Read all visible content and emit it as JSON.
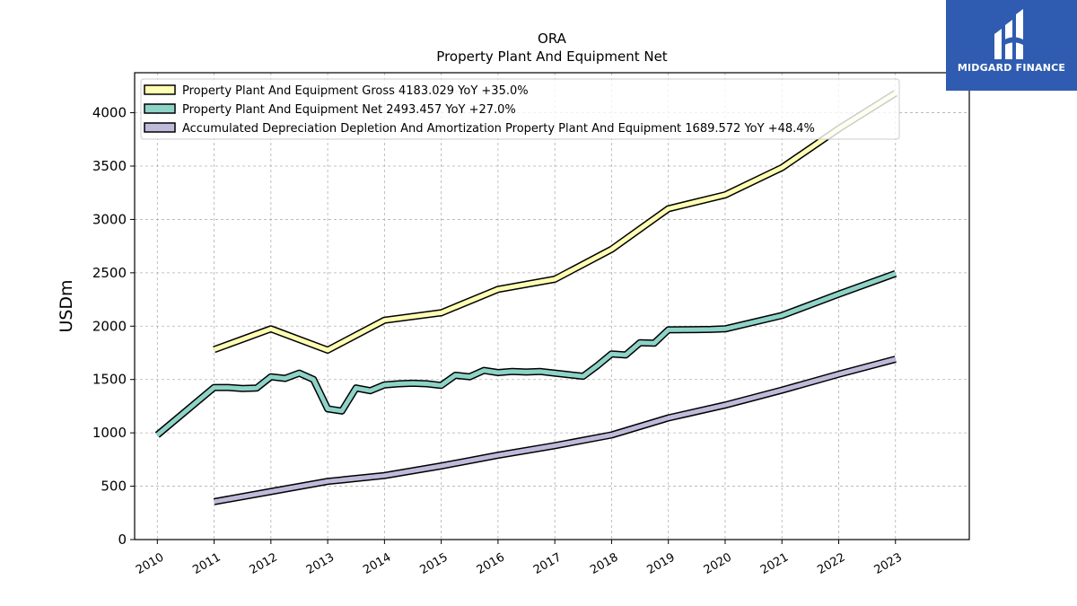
{
  "logo": {
    "text": "MIDGARD FINANCE"
  },
  "chart_data": {
    "type": "line",
    "title": "ORA",
    "subtitle": "Property Plant And Equipment Net",
    "ylabel": "USDm",
    "xlabel": "",
    "ylim": [
      0,
      4375
    ],
    "yticks": [
      0,
      500,
      1000,
      1500,
      2000,
      2500,
      3000,
      3500,
      4000
    ],
    "xlim": [
      2009.6,
      2024.3
    ],
    "xticks": [
      "2010",
      "2011",
      "2012",
      "2013",
      "2014",
      "2015",
      "2016",
      "2017",
      "2018",
      "2019",
      "2020",
      "2021",
      "2022",
      "2023"
    ],
    "grid": true,
    "legend_position": "top-left",
    "series": [
      {
        "name": "Property Plant And Equipment Gross",
        "legend": "Property Plant And Equipment Gross  4183.029 YoY +35.0%",
        "color": "#ffffb3",
        "x": [
          2011.0,
          2012.0,
          2013.0,
          2014.0,
          2015.0,
          2016.0,
          2017.0,
          2018.0,
          2019.0,
          2020.0,
          2021.0,
          2022.0,
          2023.0
        ],
        "y": [
          1780,
          1975,
          1775,
          2055,
          2125,
          2345,
          2440,
          2720,
          3100,
          3230,
          3485,
          3850,
          4183
        ]
      },
      {
        "name": "Property Plant And Equipment Net",
        "legend": "Property Plant And Equipment Net  2493.457 YoY +27.0%",
        "color": "#8dd3c7",
        "x": [
          2010.0,
          2011.0,
          2011.25,
          2011.5,
          2011.75,
          2012.0,
          2012.25,
          2012.5,
          2012.75,
          2013.0,
          2013.25,
          2013.5,
          2013.75,
          2014.0,
          2014.25,
          2014.5,
          2014.75,
          2015.0,
          2015.25,
          2015.5,
          2015.75,
          2016.0,
          2016.25,
          2016.5,
          2016.75,
          2017.0,
          2017.25,
          2017.5,
          2017.75,
          2018.0,
          2018.25,
          2018.5,
          2018.75,
          2019.0,
          2019.25,
          2019.5,
          2019.75,
          2020.0,
          2021.0,
          2022.0,
          2023.0
        ],
        "y": [
          980,
          1425,
          1425,
          1415,
          1420,
          1525,
          1510,
          1560,
          1500,
          1225,
          1205,
          1420,
          1395,
          1450,
          1460,
          1465,
          1460,
          1445,
          1540,
          1525,
          1585,
          1565,
          1575,
          1570,
          1575,
          1560,
          1545,
          1530,
          1630,
          1740,
          1730,
          1845,
          1840,
          1965,
          1967,
          1968,
          1970,
          1975,
          2100,
          2300,
          2493
        ]
      },
      {
        "name": "Accumulated Depreciation Depletion And Amortization Property Plant And Equipment",
        "legend": "Accumulated Depreciation Depletion And Amortization Property Plant And Equipment  1689.572 YoY +48.4%",
        "color": "#bebada",
        "x": [
          2011.0,
          2012.0,
          2013.0,
          2014.0,
          2015.0,
          2016.0,
          2017.0,
          2018.0,
          2019.0,
          2020.0,
          2021.0,
          2022.0,
          2023.0
        ],
        "y": [
          355,
          450,
          545,
          600,
          690,
          790,
          880,
          980,
          1140,
          1260,
          1400,
          1550,
          1690
        ]
      }
    ]
  }
}
